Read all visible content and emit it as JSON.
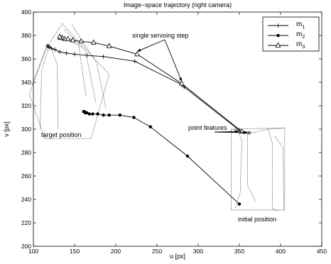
{
  "chart_data": {
    "type": "line",
    "title": "Image−space trajectory (right camera)",
    "xlabel": "u [px]",
    "ylabel": "v [px]",
    "xlim": [
      100,
      450
    ],
    "ylim": [
      200,
      400
    ],
    "xticks": [
      "100",
      "150",
      "200",
      "250",
      "300",
      "350",
      "400",
      "450"
    ],
    "yticks": [
      "200",
      "220",
      "240",
      "260",
      "280",
      "300",
      "320",
      "340",
      "360",
      "380",
      "400"
    ],
    "grid": false,
    "legend_position": "top-right",
    "series": [
      {
        "name": "m",
        "subscript": "1",
        "marker": "plus",
        "points": [
          [
            362,
            297
          ],
          [
            350,
            299
          ],
          [
            283,
            336
          ],
          [
            280,
            338
          ],
          [
            223,
            358
          ],
          [
            185,
            362
          ],
          [
            165,
            363
          ],
          [
            150,
            364
          ],
          [
            140,
            365
          ],
          [
            132,
            366
          ],
          [
            126,
            368
          ],
          [
            122,
            369
          ],
          [
            119,
            370
          ],
          [
            118,
            371
          ],
          [
            117,
            371
          ]
        ]
      },
      {
        "name": "m",
        "subscript": "2",
        "marker": "star",
        "points": [
          [
            350,
            236
          ],
          [
            287,
            277
          ],
          [
            242,
            302
          ],
          [
            222,
            310
          ],
          [
            205,
            312
          ],
          [
            192,
            312
          ],
          [
            185,
            312
          ],
          [
            178,
            313
          ],
          [
            172,
            313
          ],
          [
            168,
            313
          ],
          [
            165,
            314
          ],
          [
            163,
            314
          ],
          [
            162,
            315
          ],
          [
            161,
            315
          ]
        ]
      },
      {
        "name": "m",
        "subscript": "3",
        "marker": "triangle",
        "points": [
          [
            353,
            298
          ],
          [
            280,
            339
          ],
          [
            226,
            364
          ],
          [
            192,
            371
          ],
          [
            173,
            374
          ],
          [
            158,
            375
          ],
          [
            148,
            376
          ],
          [
            142,
            377
          ],
          [
            138,
            377
          ],
          [
            135,
            378
          ],
          [
            133,
            378
          ],
          [
            132,
            379
          ]
        ]
      }
    ],
    "annotations": {
      "single_step": "single servoing step",
      "point_features": "point features",
      "target_position": "target position",
      "initial_position": "initial position"
    },
    "dotted_frames": {
      "initial": [
        [
          [
            340,
            300
          ],
          [
            405,
            301
          ],
          [
            405,
            231
          ],
          [
            340,
            231
          ],
          [
            340,
            300
          ]
        ],
        [
          [
            345,
            301
          ],
          [
            353,
            291
          ],
          [
            351,
            246
          ],
          [
            345,
            232
          ]
        ],
        [
          [
            360,
            296
          ],
          [
            360,
            252
          ],
          [
            370,
            238
          ]
        ],
        [
          [
            385,
            300
          ],
          [
            390,
            288
          ],
          [
            390,
            232
          ],
          [
            398,
            230
          ]
        ],
        [
          [
            340,
            300
          ],
          [
            360,
            296
          ],
          [
            385,
            300
          ],
          [
            405,
            301
          ]
        ],
        [
          [
            393,
            294
          ],
          [
            403,
            284
          ],
          [
            404,
            231
          ]
        ]
      ],
      "target": [
        [
          [
            117,
            371
          ],
          [
            135,
            390
          ],
          [
            192,
            347
          ],
          [
            170,
            292
          ],
          [
            114,
            292
          ],
          [
            95,
            330
          ],
          [
            117,
            371
          ]
        ],
        [
          [
            130,
            379
          ],
          [
            155,
            372
          ],
          [
            164,
            328
          ]
        ],
        [
          [
            138,
            385
          ],
          [
            163,
            367
          ],
          [
            176,
            322
          ]
        ],
        [
          [
            147,
            389
          ],
          [
            177,
            356
          ],
          [
            188,
            318
          ]
        ],
        [
          [
            116,
            371
          ],
          [
            98,
            337
          ]
        ],
        [
          [
            118,
            368
          ],
          [
            110,
            350
          ],
          [
            108,
            300
          ]
        ],
        [
          [
            120,
            372
          ],
          [
            129,
            355
          ],
          [
            130,
            300
          ]
        ]
      ]
    }
  }
}
